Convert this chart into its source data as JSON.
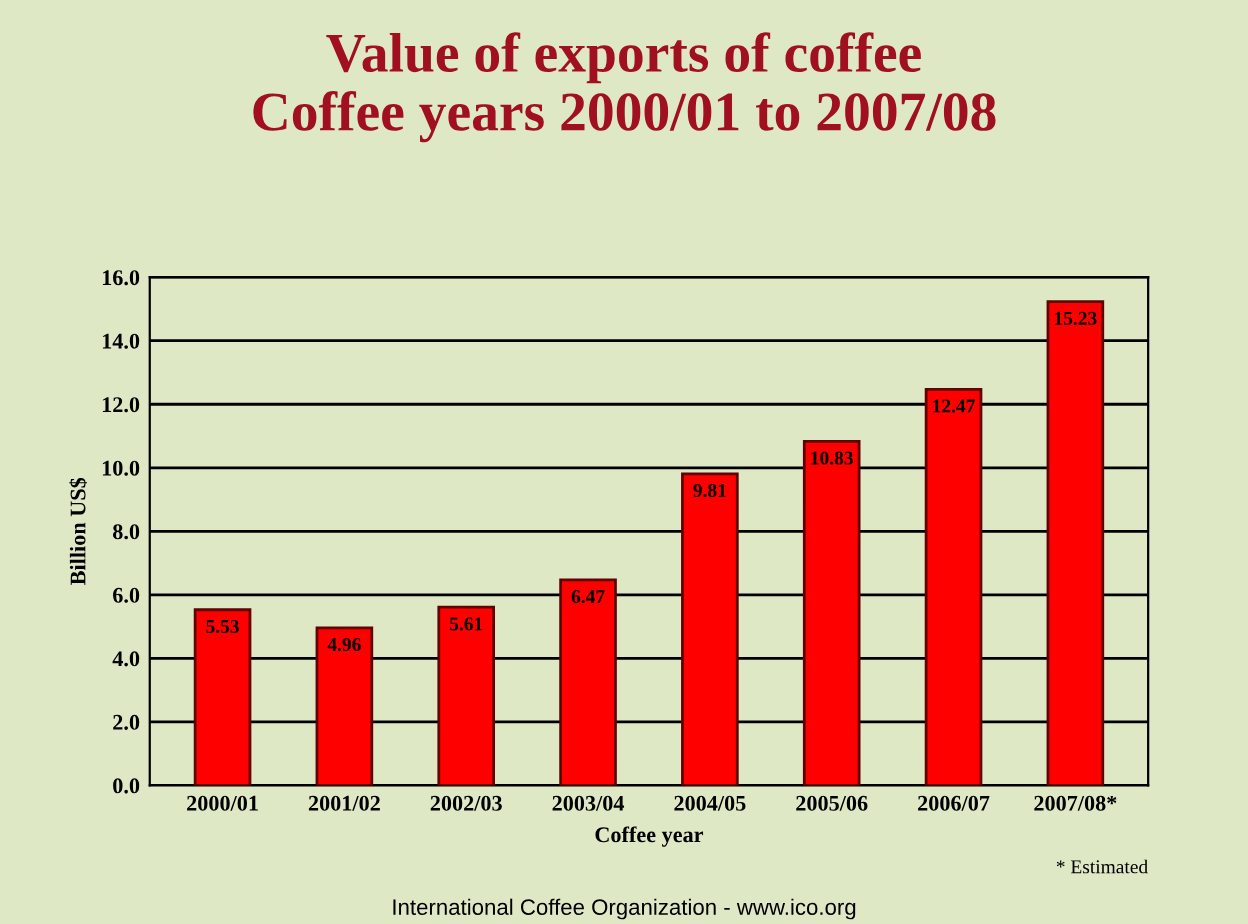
{
  "chart_data": {
    "type": "bar",
    "title": "Value of exports of coffee\nCoffee years 2000/01 to 2007/08",
    "categories": [
      "2000/01",
      "2001/02",
      "2002/03",
      "2003/04",
      "2004/05",
      "2005/06",
      "2006/07",
      "2007/08*"
    ],
    "values": [
      5.53,
      4.96,
      5.61,
      6.47,
      9.81,
      10.83,
      12.47,
      15.23
    ],
    "color": "#ff0000",
    "xlabel": "Coffee year",
    "ylabel": "Billion US$",
    "ylim": [
      0,
      16
    ],
    "yticks": [
      {
        "value": 0,
        "label": "0.0"
      },
      {
        "value": 2,
        "label": "2.0"
      },
      {
        "value": 4,
        "label": "4.0"
      },
      {
        "value": 6,
        "label": "6.0"
      },
      {
        "value": 8,
        "label": "8.0"
      },
      {
        "value": 10,
        "label": "10.0"
      },
      {
        "value": 12,
        "label": "12.0"
      },
      {
        "value": 14,
        "label": "14.0"
      },
      {
        "value": 16,
        "label": "16.0"
      }
    ],
    "grid": "y",
    "data_labels": true,
    "annotations": [
      "* Estimated",
      "International Coffee Organization - www.ico.org"
    ]
  }
}
